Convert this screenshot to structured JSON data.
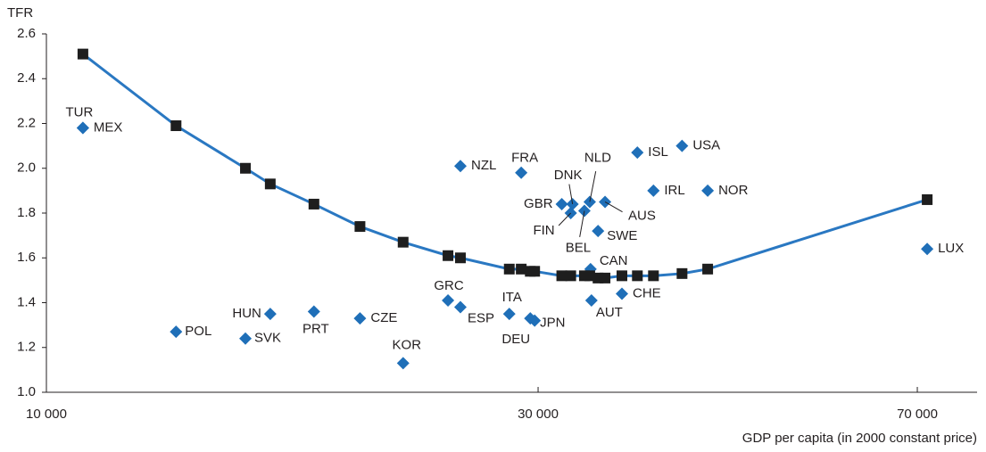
{
  "chart_data": {
    "type": "scatter",
    "xlabel": "GDP per capita (in 2000 constant price)",
    "ylabel": "TFR",
    "xscale": "log",
    "xlim": [
      10000,
      80000
    ],
    "xticks": [
      {
        "value": 10000,
        "label": "10 000"
      },
      {
        "value": 30000,
        "label": "30 000"
      },
      {
        "value": 70000,
        "label": "70 000"
      }
    ],
    "ylim": [
      1.0,
      2.6
    ],
    "yticks": [
      {
        "value": 1.0,
        "label": "1.0"
      },
      {
        "value": 1.2,
        "label": "1.2"
      },
      {
        "value": 1.4,
        "label": "1.4"
      },
      {
        "value": 1.6,
        "label": "1.6"
      },
      {
        "value": 1.8,
        "label": "1.8"
      },
      {
        "value": 2.0,
        "label": "2.0"
      },
      {
        "value": 2.2,
        "label": "2.2"
      },
      {
        "value": 2.4,
        "label": "2.4"
      },
      {
        "value": 2.6,
        "label": "2.6"
      }
    ],
    "grid": false,
    "series": [
      {
        "color": "#1f6fb8",
        "marker": "diamond",
        "labels": [
          "TUR",
          "MEX",
          "POL",
          "SVK",
          "HUN",
          "PRT",
          "CZE",
          "KOR",
          "GRC",
          "ESP",
          "NZL",
          "ITA",
          "FRA",
          "DEU",
          "JPN",
          "GBR",
          "FIN",
          "DNK",
          "BEL",
          "NLD",
          "AUS",
          "SWE",
          "CAN",
          "AUT",
          "CHE",
          "ISL",
          "IRL",
          "USA",
          "NOR",
          "LUX"
        ],
        "x": [
          10850,
          10850,
          13360,
          15600,
          16490,
          18180,
          20150,
          22190,
          24530,
          25220,
          25220,
          28130,
          28890,
          29480,
          29770,
          31630,
          32270,
          32400,
          33270,
          33670,
          34840,
          34300,
          33730,
          33800,
          36180,
          37450,
          38820,
          41380,
          43820,
          71560
        ],
        "values": [
          2.18,
          2.18,
          1.27,
          1.24,
          1.35,
          1.36,
          1.33,
          1.13,
          1.41,
          1.38,
          2.01,
          1.35,
          1.98,
          1.33,
          1.32,
          1.84,
          1.8,
          1.84,
          1.81,
          1.85,
          1.85,
          1.72,
          1.55,
          1.41,
          1.44,
          2.07,
          1.9,
          2.1,
          1.9,
          1.64
        ]
      },
      {
        "color": "#2a78c2",
        "marker_color": "#1e1e1e",
        "marker": "square",
        "line": true,
        "x": [
          10850,
          13360,
          15600,
          16490,
          18180,
          20150,
          22190,
          24530,
          25220,
          28130,
          28890,
          29480,
          29770,
          31630,
          32270,
          33270,
          33670,
          34300,
          34840,
          36180,
          37450,
          38820,
          41380,
          43820,
          71560
        ],
        "values": [
          2.51,
          2.19,
          2.0,
          1.93,
          1.84,
          1.74,
          1.67,
          1.61,
          1.6,
          1.55,
          1.55,
          1.54,
          1.54,
          1.52,
          1.52,
          1.52,
          1.52,
          1.51,
          1.51,
          1.52,
          1.52,
          1.52,
          1.53,
          1.55,
          1.86
        ]
      }
    ]
  }
}
